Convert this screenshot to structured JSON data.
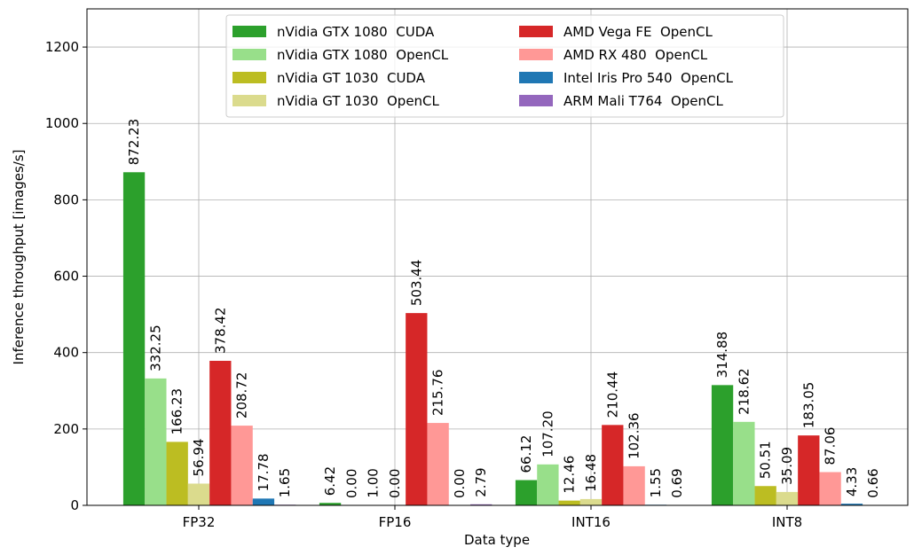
{
  "chart_data": {
    "type": "bar",
    "xlabel": "Data type",
    "ylabel": "Inference throughput [images/s]",
    "categories": [
      "FP32",
      "FP16",
      "INT16",
      "INT8"
    ],
    "series": [
      {
        "name": "nVidia GTX 1080  CUDA",
        "color": "#2ca02c",
        "values": [
          872.23,
          6.42,
          66.12,
          314.88
        ],
        "value_labels": [
          "872.23",
          "6.42",
          "66.12",
          "314.88"
        ]
      },
      {
        "name": "nVidia GTX 1080  OpenCL",
        "color": "#98df8a",
        "values": [
          332.25,
          0,
          107.2,
          218.62
        ],
        "value_labels": [
          "332.25",
          "0.00",
          "107.20",
          "218.62"
        ]
      },
      {
        "name": "nVidia GT 1030  CUDA",
        "color": "#bcbd22",
        "values": [
          166.23,
          1,
          12.46,
          50.51
        ],
        "value_labels": [
          "166.23",
          "1.00",
          "12.46",
          "50.51"
        ]
      },
      {
        "name": "nVidia GT 1030  OpenCL",
        "color": "#dbdb8d",
        "values": [
          56.94,
          0,
          16.48,
          35.09
        ],
        "value_labels": [
          "56.94",
          "0.00",
          "16.48",
          "35.09"
        ]
      },
      {
        "name": "AMD Vega FE  OpenCL",
        "color": "#d62728",
        "values": [
          378.42,
          503.44,
          210.44,
          183.05
        ],
        "value_labels": [
          "378.42",
          "503.44",
          "210.44",
          "183.05"
        ]
      },
      {
        "name": "AMD RX 480  OpenCL",
        "color": "#ff9896",
        "values": [
          208.72,
          215.76,
          102.36,
          87.06
        ],
        "value_labels": [
          "208.72",
          "215.76",
          "102.36",
          "87.06"
        ]
      },
      {
        "name": "Intel Iris Pro 540  OpenCL",
        "color": "#1f77b4",
        "values": [
          17.78,
          0,
          1.55,
          4.33
        ],
        "value_labels": [
          "17.78",
          "0.00",
          "1.55",
          "4.33"
        ]
      },
      {
        "name": "ARM Mali T764  OpenCL",
        "color": "#9467bd",
        "values": [
          1.65,
          2.79,
          0.69,
          0.66
        ],
        "value_labels": [
          "1.65",
          "2.79",
          "0.69",
          "0.66"
        ]
      }
    ],
    "ylim": [
      0,
      1300
    ],
    "yticks": [
      0,
      200,
      400,
      600,
      800,
      1000,
      1200
    ],
    "grid": true,
    "legend": "upper center"
  }
}
